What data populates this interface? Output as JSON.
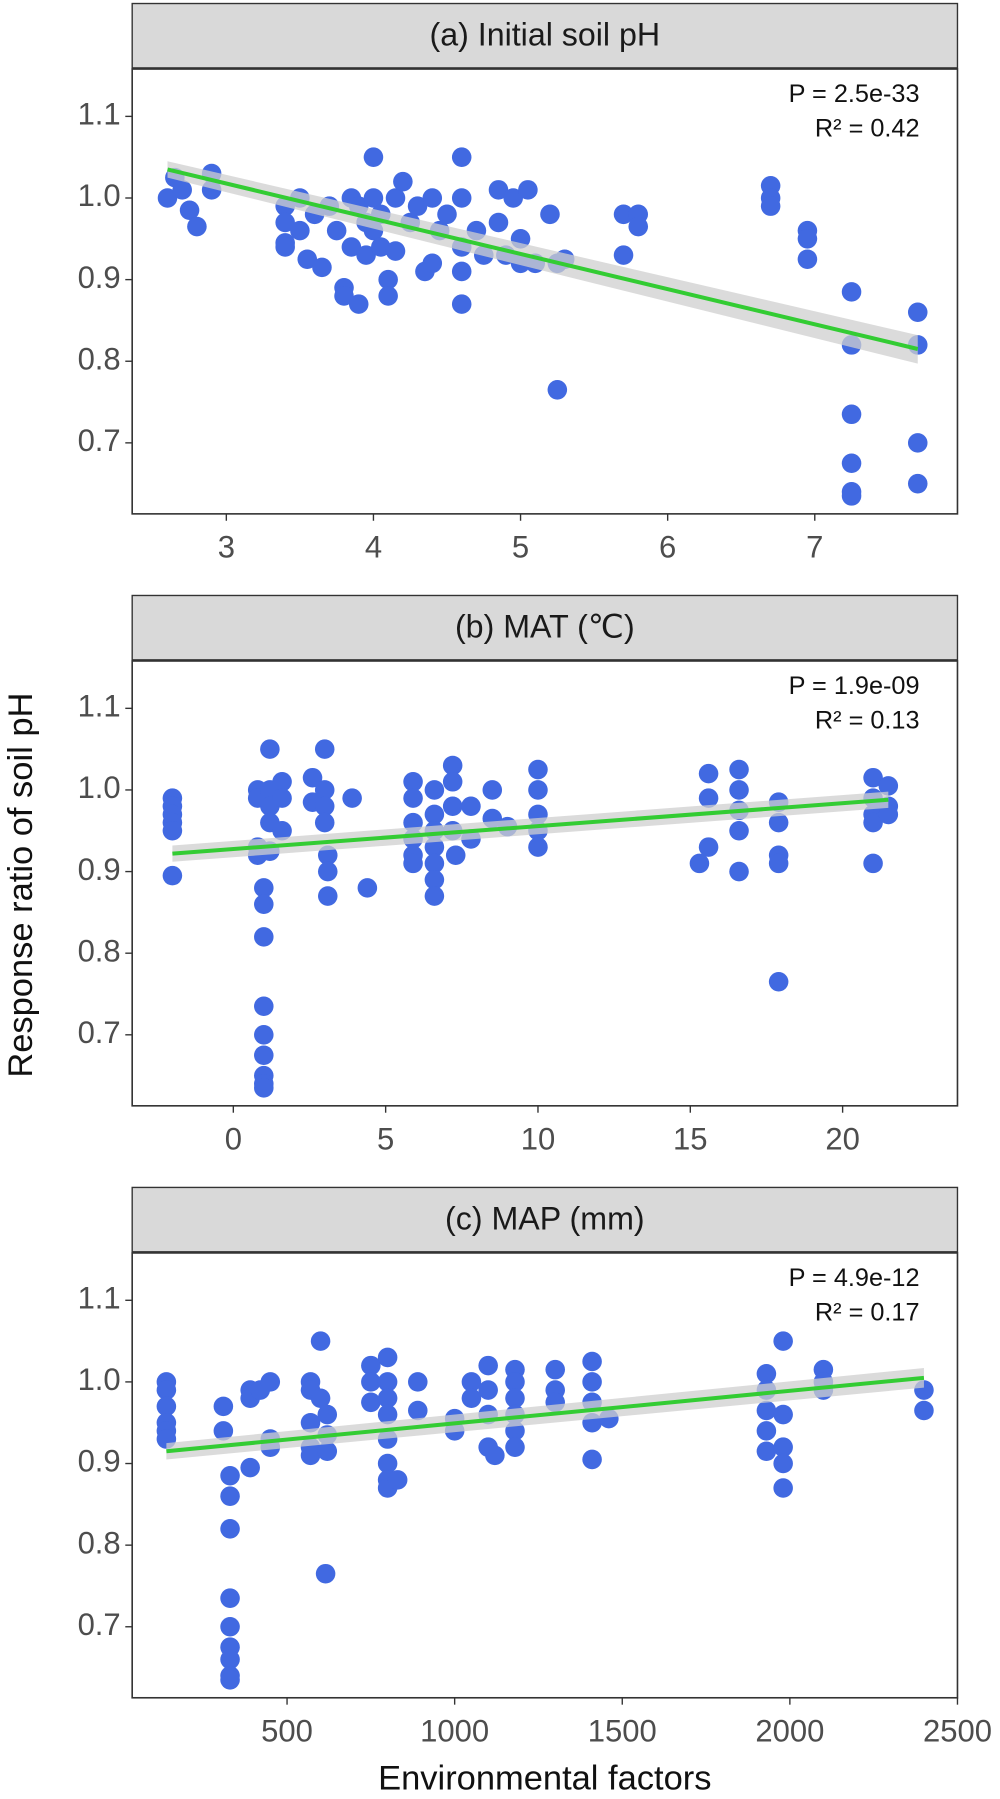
{
  "y_label": "Response ratio of soil pH",
  "x_label": "Environmental factors",
  "chart_data": [
    {
      "type": "scatter",
      "title": "(a) Initial soil pH",
      "annotations": [
        "P = 2.5e-33",
        "R² = 0.42"
      ],
      "xlim": [
        2.36,
        7.97
      ],
      "xticks": [
        3,
        4,
        5,
        6,
        7
      ],
      "ylim": [
        0.613,
        1.158
      ],
      "yticks": [
        0.7,
        0.8,
        0.9,
        {
          "value": 1,
          "label": "1.0"
        },
        1.1
      ],
      "color": "#4169e1",
      "x": [
        2.6,
        2.65,
        2.7,
        2.75,
        2.8,
        2.9,
        2.9,
        3.4,
        3.4,
        3.4,
        3.4,
        3.5,
        3.5,
        3.55,
        3.6,
        3.65,
        3.7,
        3.75,
        3.8,
        3.8,
        3.85,
        3.85,
        3.9,
        3.9,
        3.95,
        3.95,
        4.0,
        4.0,
        4.0,
        4.05,
        4.05,
        4.1,
        4.1,
        4.15,
        4.15,
        4.2,
        4.25,
        4.3,
        4.35,
        4.4,
        4.4,
        4.45,
        4.5,
        4.6,
        4.6,
        4.6,
        4.6,
        4.6,
        4.7,
        4.75,
        4.85,
        4.85,
        4.9,
        4.95,
        5.0,
        5.0,
        5.05,
        5.1,
        5.2,
        5.25,
        5.25,
        5.3,
        5.7,
        5.7,
        5.8,
        5.8,
        6.7,
        6.7,
        6.7,
        6.95,
        6.95,
        6.95,
        7.25,
        7.25,
        7.25,
        7.25,
        7.25,
        7.25,
        7.7,
        7.7,
        7.7,
        7.7
      ],
      "values": [
        1.0,
        1.025,
        1.01,
        0.985,
        0.965,
        1.03,
        1.01,
        0.99,
        0.97,
        0.945,
        0.94,
        1.0,
        0.96,
        0.925,
        0.98,
        0.915,
        0.99,
        0.96,
        0.89,
        0.88,
        1.0,
        0.94,
        0.87,
        0.99,
        0.97,
        0.93,
        1.05,
        1.0,
        0.96,
        0.98,
        0.94,
        0.9,
        0.88,
        1.0,
        0.935,
        1.02,
        0.97,
        0.99,
        0.91,
        1.0,
        0.92,
        0.96,
        0.98,
        1.05,
        1.0,
        0.94,
        0.91,
        0.87,
        0.96,
        0.93,
        1.01,
        0.97,
        0.93,
        1.0,
        0.95,
        0.92,
        1.01,
        0.92,
        0.98,
        0.92,
        0.765,
        0.925,
        0.98,
        0.93,
        0.98,
        0.965,
        1.015,
        1.0,
        0.99,
        0.96,
        0.95,
        0.925,
        0.885,
        0.82,
        0.735,
        0.675,
        0.64,
        0.635,
        0.86,
        0.82,
        0.7,
        0.65
      ],
      "fit": {
        "x": [
          2.6,
          7.7
        ],
        "values": [
          1.035,
          0.815
        ],
        "lower": [
          1.025,
          0.797
        ],
        "upper": [
          1.045,
          0.832
        ],
        "color": "#33cc33",
        "band_color": "#cfcfcf"
      }
    },
    {
      "type": "scatter",
      "title": "(b) MAT (℃)",
      "annotations": [
        "P = 1.9e-09",
        "R² = 0.13"
      ],
      "xlim": [
        -3.32,
        23.77
      ],
      "xticks": [
        0,
        5,
        10,
        15,
        20
      ],
      "ylim": [
        0.613,
        1.158
      ],
      "yticks": [
        0.7,
        0.8,
        0.9,
        {
          "value": 1,
          "label": "1.0"
        },
        1.1
      ],
      "color": "#4169e1",
      "x": [
        -2,
        -2,
        -2,
        -2,
        -2,
        -2,
        0.8,
        0.8,
        0.8,
        0.8,
        1.0,
        1.0,
        1.0,
        1.0,
        1.0,
        1.0,
        1.0,
        1.0,
        1.0,
        1.2,
        1.2,
        1.2,
        1.2,
        1.2,
        1.6,
        1.6,
        1.6,
        2.6,
        2.6,
        3.0,
        3.0,
        3.0,
        3.0,
        3.1,
        3.1,
        3.1,
        3.9,
        4.4,
        5.9,
        5.9,
        5.9,
        5.9,
        5.9,
        5.9,
        6.6,
        6.6,
        6.6,
        6.6,
        6.6,
        6.6,
        6.6,
        7.2,
        7.2,
        7.2,
        7.2,
        7.3,
        7.8,
        7.8,
        8.5,
        8.5,
        9.0,
        10,
        10,
        10,
        10,
        10,
        15.3,
        15.6,
        15.6,
        15.6,
        16.6,
        16.6,
        16.6,
        16.6,
        16.6,
        17.9,
        17.9,
        17.9,
        17.9,
        17.9,
        21,
        21,
        21,
        21,
        21,
        21.5,
        21.5,
        21.5
      ],
      "values": [
        0.99,
        0.98,
        0.97,
        0.96,
        0.95,
        0.895,
        1.0,
        0.99,
        0.93,
        0.92,
        0.88,
        0.86,
        0.82,
        0.735,
        0.7,
        0.675,
        0.65,
        0.64,
        0.635,
        1.05,
        1.0,
        0.98,
        0.96,
        0.925,
        1.01,
        0.99,
        0.95,
        1.015,
        0.985,
        1.05,
        1.0,
        0.98,
        0.96,
        0.92,
        0.9,
        0.87,
        0.99,
        0.88,
        1.01,
        0.99,
        0.96,
        0.94,
        0.92,
        0.91,
        1.0,
        0.97,
        0.95,
        0.93,
        0.91,
        0.89,
        0.87,
        1.03,
        1.01,
        0.98,
        0.95,
        0.92,
        0.98,
        0.94,
        1.0,
        0.965,
        0.955,
        1.025,
        1.0,
        0.97,
        0.95,
        0.93,
        0.91,
        1.02,
        0.99,
        0.93,
        1.025,
        1.0,
        0.975,
        0.95,
        0.9,
        0.985,
        0.96,
        0.92,
        0.91,
        0.765,
        1.015,
        0.99,
        0.97,
        0.96,
        0.91,
        1.005,
        0.98,
        0.97
      ],
      "fit": {
        "x": [
          -2,
          21.5
        ],
        "values": [
          0.922,
          0.988
        ],
        "lower": [
          0.912,
          0.978
        ],
        "upper": [
          0.932,
          0.998
        ],
        "color": "#33cc33",
        "band_color": "#cfcfcf"
      }
    },
    {
      "type": "scatter",
      "title": "(c) MAP (mm)",
      "annotations": [
        "P = 4.9e-12",
        "R² = 0.17"
      ],
      "xlim": [
        38,
        2500
      ],
      "xticks": [
        500,
        1000,
        1500,
        2000,
        2500
      ],
      "ylim": [
        0.613,
        1.158
      ],
      "yticks": [
        0.7,
        0.8,
        0.9,
        {
          "value": 1,
          "label": "1.0"
        },
        1.1
      ],
      "color": "#4169e1",
      "x": [
        140,
        140,
        140,
        140,
        140,
        140,
        310,
        310,
        330,
        330,
        330,
        330,
        330,
        330,
        330,
        330,
        330,
        390,
        390,
        390,
        420,
        450,
        450,
        450,
        570,
        570,
        570,
        570,
        570,
        600,
        600,
        620,
        620,
        620,
        615,
        750,
        750,
        750,
        800,
        800,
        800,
        800,
        800,
        800,
        800,
        800,
        830,
        890,
        890,
        1000,
        1000,
        1050,
        1050,
        1100,
        1100,
        1100,
        1100,
        1120,
        1180,
        1180,
        1180,
        1180,
        1180,
        1180,
        1300,
        1300,
        1300,
        1410,
        1410,
        1410,
        1410,
        1410,
        1460,
        1930,
        1930,
        1930,
        1930,
        1930,
        1980,
        1980,
        1980,
        1980,
        1980,
        2100,
        2100,
        2100,
        2400,
        2400
      ],
      "values": [
        1.0,
        0.99,
        0.97,
        0.95,
        0.94,
        0.93,
        0.97,
        0.94,
        0.885,
        0.86,
        0.82,
        0.735,
        0.7,
        0.675,
        0.66,
        0.64,
        0.635,
        0.99,
        0.98,
        0.895,
        0.99,
        1.0,
        0.93,
        0.92,
        1.0,
        0.99,
        0.95,
        0.92,
        0.91,
        1.05,
        0.98,
        0.96,
        0.935,
        0.915,
        0.765,
        1.02,
        1.0,
        0.975,
        1.03,
        1.0,
        0.98,
        0.96,
        0.93,
        0.9,
        0.88,
        0.87,
        0.88,
        1.0,
        0.965,
        0.955,
        0.94,
        1.0,
        0.98,
        1.02,
        0.99,
        0.96,
        0.92,
        0.91,
        1.015,
        1.0,
        0.98,
        0.96,
        0.94,
        0.92,
        1.015,
        0.99,
        0.975,
        1.025,
        1.0,
        0.975,
        0.95,
        0.905,
        0.955,
        1.01,
        0.99,
        0.965,
        0.94,
        0.915,
        1.05,
        0.96,
        0.92,
        0.9,
        0.87,
        1.015,
        1.0,
        0.99,
        0.99,
        0.965
      ],
      "fit": {
        "x": [
          140,
          2400
        ],
        "values": [
          0.915,
          1.005
        ],
        "lower": [
          0.905,
          0.993
        ],
        "upper": [
          0.925,
          1.017
        ],
        "color": "#33cc33",
        "band_color": "#cfcfcf"
      }
    }
  ]
}
